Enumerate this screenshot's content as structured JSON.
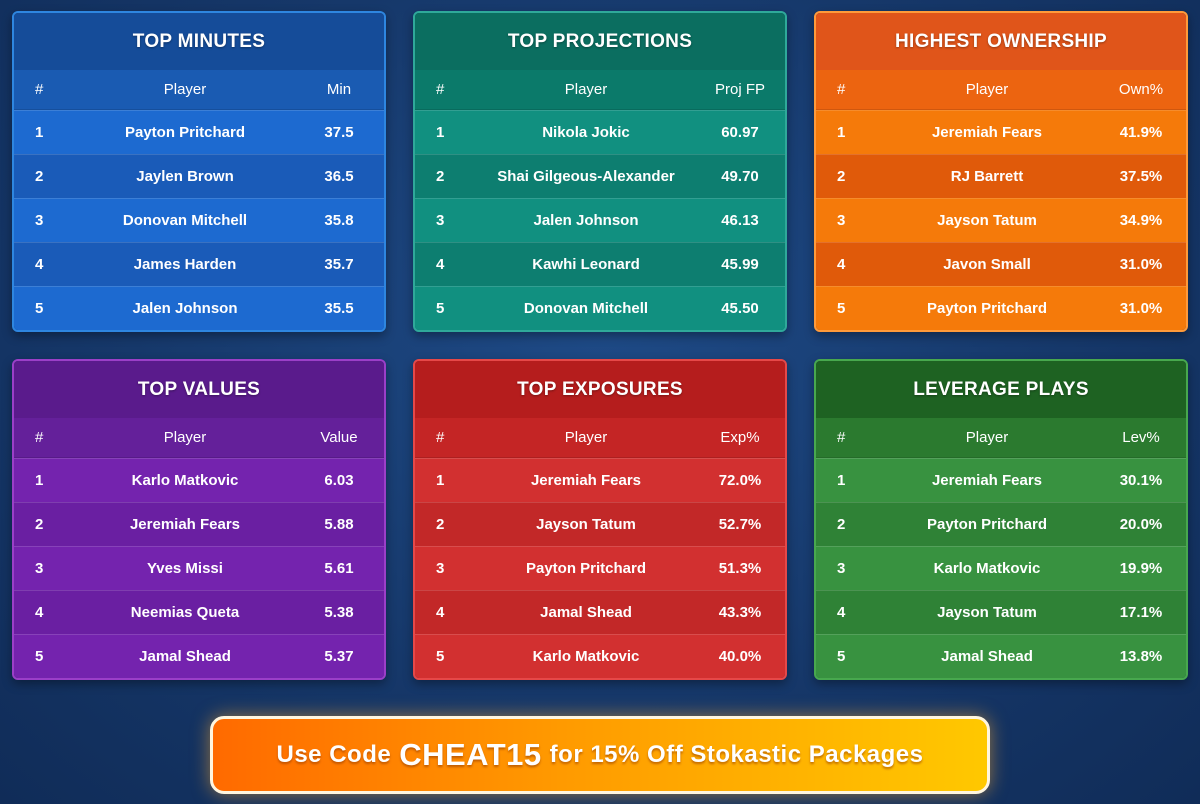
{
  "cards": [
    {
      "title": "TOP MINUTES",
      "headers": [
        "#",
        "Player",
        "Min"
      ],
      "rows": [
        [
          "1",
          "Payton Pritchard",
          "37.5"
        ],
        [
          "2",
          "Jaylen Brown",
          "36.5"
        ],
        [
          "3",
          "Donovan Mitchell",
          "35.8"
        ],
        [
          "4",
          "James Harden",
          "35.7"
        ],
        [
          "5",
          "Jalen Johnson",
          "35.5"
        ]
      ]
    },
    {
      "title": "TOP PROJECTIONS",
      "headers": [
        "#",
        "Player",
        "Proj FP"
      ],
      "rows": [
        [
          "1",
          "Nikola Jokic",
          "60.97"
        ],
        [
          "2",
          "Shai Gilgeous-Alexander",
          "49.70"
        ],
        [
          "3",
          "Jalen Johnson",
          "46.13"
        ],
        [
          "4",
          "Kawhi Leonard",
          "45.99"
        ],
        [
          "5",
          "Donovan Mitchell",
          "45.50"
        ]
      ]
    },
    {
      "title": "HIGHEST OWNERSHIP",
      "headers": [
        "#",
        "Player",
        "Own%"
      ],
      "rows": [
        [
          "1",
          "Jeremiah Fears",
          "41.9%"
        ],
        [
          "2",
          "RJ Barrett",
          "37.5%"
        ],
        [
          "3",
          "Jayson Tatum",
          "34.9%"
        ],
        [
          "4",
          "Javon Small",
          "31.0%"
        ],
        [
          "5",
          "Payton Pritchard",
          "31.0%"
        ]
      ]
    },
    {
      "title": "TOP VALUES",
      "headers": [
        "#",
        "Player",
        "Value"
      ],
      "rows": [
        [
          "1",
          "Karlo Matkovic",
          "6.03"
        ],
        [
          "2",
          "Jeremiah Fears",
          "5.88"
        ],
        [
          "3",
          "Yves Missi",
          "5.61"
        ],
        [
          "4",
          "Neemias Queta",
          "5.38"
        ],
        [
          "5",
          "Jamal Shead",
          "5.37"
        ]
      ]
    },
    {
      "title": "TOP EXPOSURES",
      "headers": [
        "#",
        "Player",
        "Exp%"
      ],
      "rows": [
        [
          "1",
          "Jeremiah Fears",
          "72.0%"
        ],
        [
          "2",
          "Jayson Tatum",
          "52.7%"
        ],
        [
          "3",
          "Payton Pritchard",
          "51.3%"
        ],
        [
          "4",
          "Jamal Shead",
          "43.3%"
        ],
        [
          "5",
          "Karlo Matkovic",
          "40.0%"
        ]
      ]
    },
    {
      "title": "LEVERAGE PLAYS",
      "headers": [
        "#",
        "Player",
        "Lev%"
      ],
      "rows": [
        [
          "1",
          "Jeremiah Fears",
          "30.1%"
        ],
        [
          "2",
          "Payton Pritchard",
          "20.0%"
        ],
        [
          "3",
          "Karlo Matkovic",
          "19.9%"
        ],
        [
          "4",
          "Jayson Tatum",
          "17.1%"
        ],
        [
          "5",
          "Jamal Shead",
          "13.8%"
        ]
      ]
    }
  ],
  "promo": {
    "prefix": "Use Code",
    "code": "CHEAT15",
    "suffix": "for 15% Off Stokastic Packages"
  }
}
